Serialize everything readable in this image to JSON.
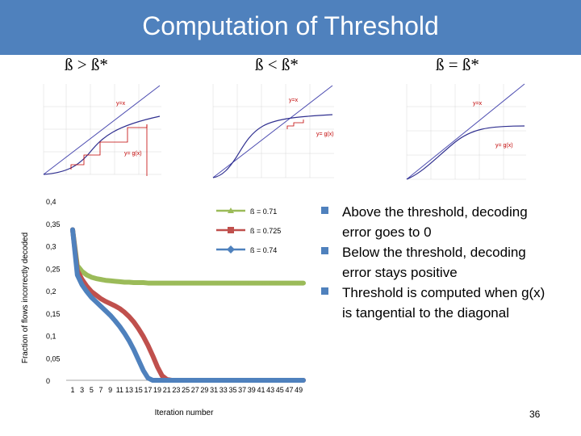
{
  "slide": {
    "title": "Computation of Threshold",
    "page_number": "36"
  },
  "headers": [
    "ß > ß*",
    "ß < ß*",
    "ß = ß*"
  ],
  "thumbnails": [
    {
      "labels": [
        "y=x",
        "y= g(x)"
      ]
    },
    {
      "labels": [
        "y=x",
        "y= g(x)"
      ]
    },
    {
      "labels": [
        "y=x",
        "y= g(x)"
      ]
    }
  ],
  "bullets": [
    "Above the threshold, decoding error goes to 0",
    "Below the threshold, decoding error stays positive",
    "Threshold is computed when g(x) is tangential to the diagonal"
  ],
  "chart_data": {
    "type": "line",
    "xlabel": "Iteration number",
    "ylabel": "Fraction of flows incorrectly decoded",
    "ylim": [
      0,
      0.4
    ],
    "y_ticks": [
      "0",
      "0,05",
      "0,1",
      "0,15",
      "0,2",
      "0,25",
      "0,3",
      "0,35",
      "0,4"
    ],
    "x_tick_labels": [
      "1",
      "3",
      "5",
      "7",
      "9",
      "11",
      "13",
      "15",
      "17",
      "19",
      "21",
      "23",
      "25",
      "27",
      "29",
      "31",
      "33",
      "35",
      "37",
      "39",
      "41",
      "43",
      "45",
      "47",
      "49"
    ],
    "legend_position": "top-right",
    "colors": {
      "s071": "#9bbb59",
      "s0725": "#c0504d",
      "s074": "#4f81bd"
    },
    "series": [
      {
        "name": "ß = 0.71",
        "values": [
          0.336,
          0.256,
          0.243,
          0.235,
          0.23,
          0.227,
          0.225,
          0.223,
          0.222,
          0.221,
          0.22,
          0.219,
          0.219,
          0.218,
          0.218,
          0.218,
          0.217,
          0.217,
          0.217,
          0.217,
          0.217,
          0.217,
          0.217,
          0.217,
          0.217,
          0.217,
          0.217,
          0.217,
          0.217,
          0.217,
          0.217,
          0.217,
          0.217,
          0.217,
          0.217,
          0.217,
          0.217,
          0.217,
          0.217,
          0.217,
          0.217,
          0.217,
          0.217,
          0.217,
          0.217,
          0.217,
          0.217,
          0.217,
          0.217,
          0.217
        ]
      },
      {
        "name": "ß = 0.725",
        "values": [
          0.336,
          0.245,
          0.225,
          0.21,
          0.198,
          0.19,
          0.182,
          0.176,
          0.171,
          0.166,
          0.16,
          0.152,
          0.142,
          0.13,
          0.115,
          0.098,
          0.078,
          0.055,
          0.03,
          0.01,
          0.002,
          0,
          0,
          0,
          0,
          0,
          0,
          0,
          0,
          0,
          0,
          0,
          0,
          0,
          0,
          0,
          0,
          0,
          0,
          0,
          0,
          0,
          0,
          0,
          0,
          0,
          0,
          0,
          0,
          0
        ]
      },
      {
        "name": "ß = 0.74",
        "values": [
          0.336,
          0.235,
          0.213,
          0.198,
          0.185,
          0.175,
          0.165,
          0.155,
          0.145,
          0.133,
          0.12,
          0.105,
          0.088,
          0.068,
          0.045,
          0.022,
          0.005,
          0,
          0,
          0,
          0,
          0,
          0,
          0,
          0,
          0,
          0,
          0,
          0,
          0,
          0,
          0,
          0,
          0,
          0,
          0,
          0,
          0,
          0,
          0,
          0,
          0,
          0,
          0,
          0,
          0,
          0,
          0,
          0,
          0
        ]
      }
    ]
  }
}
